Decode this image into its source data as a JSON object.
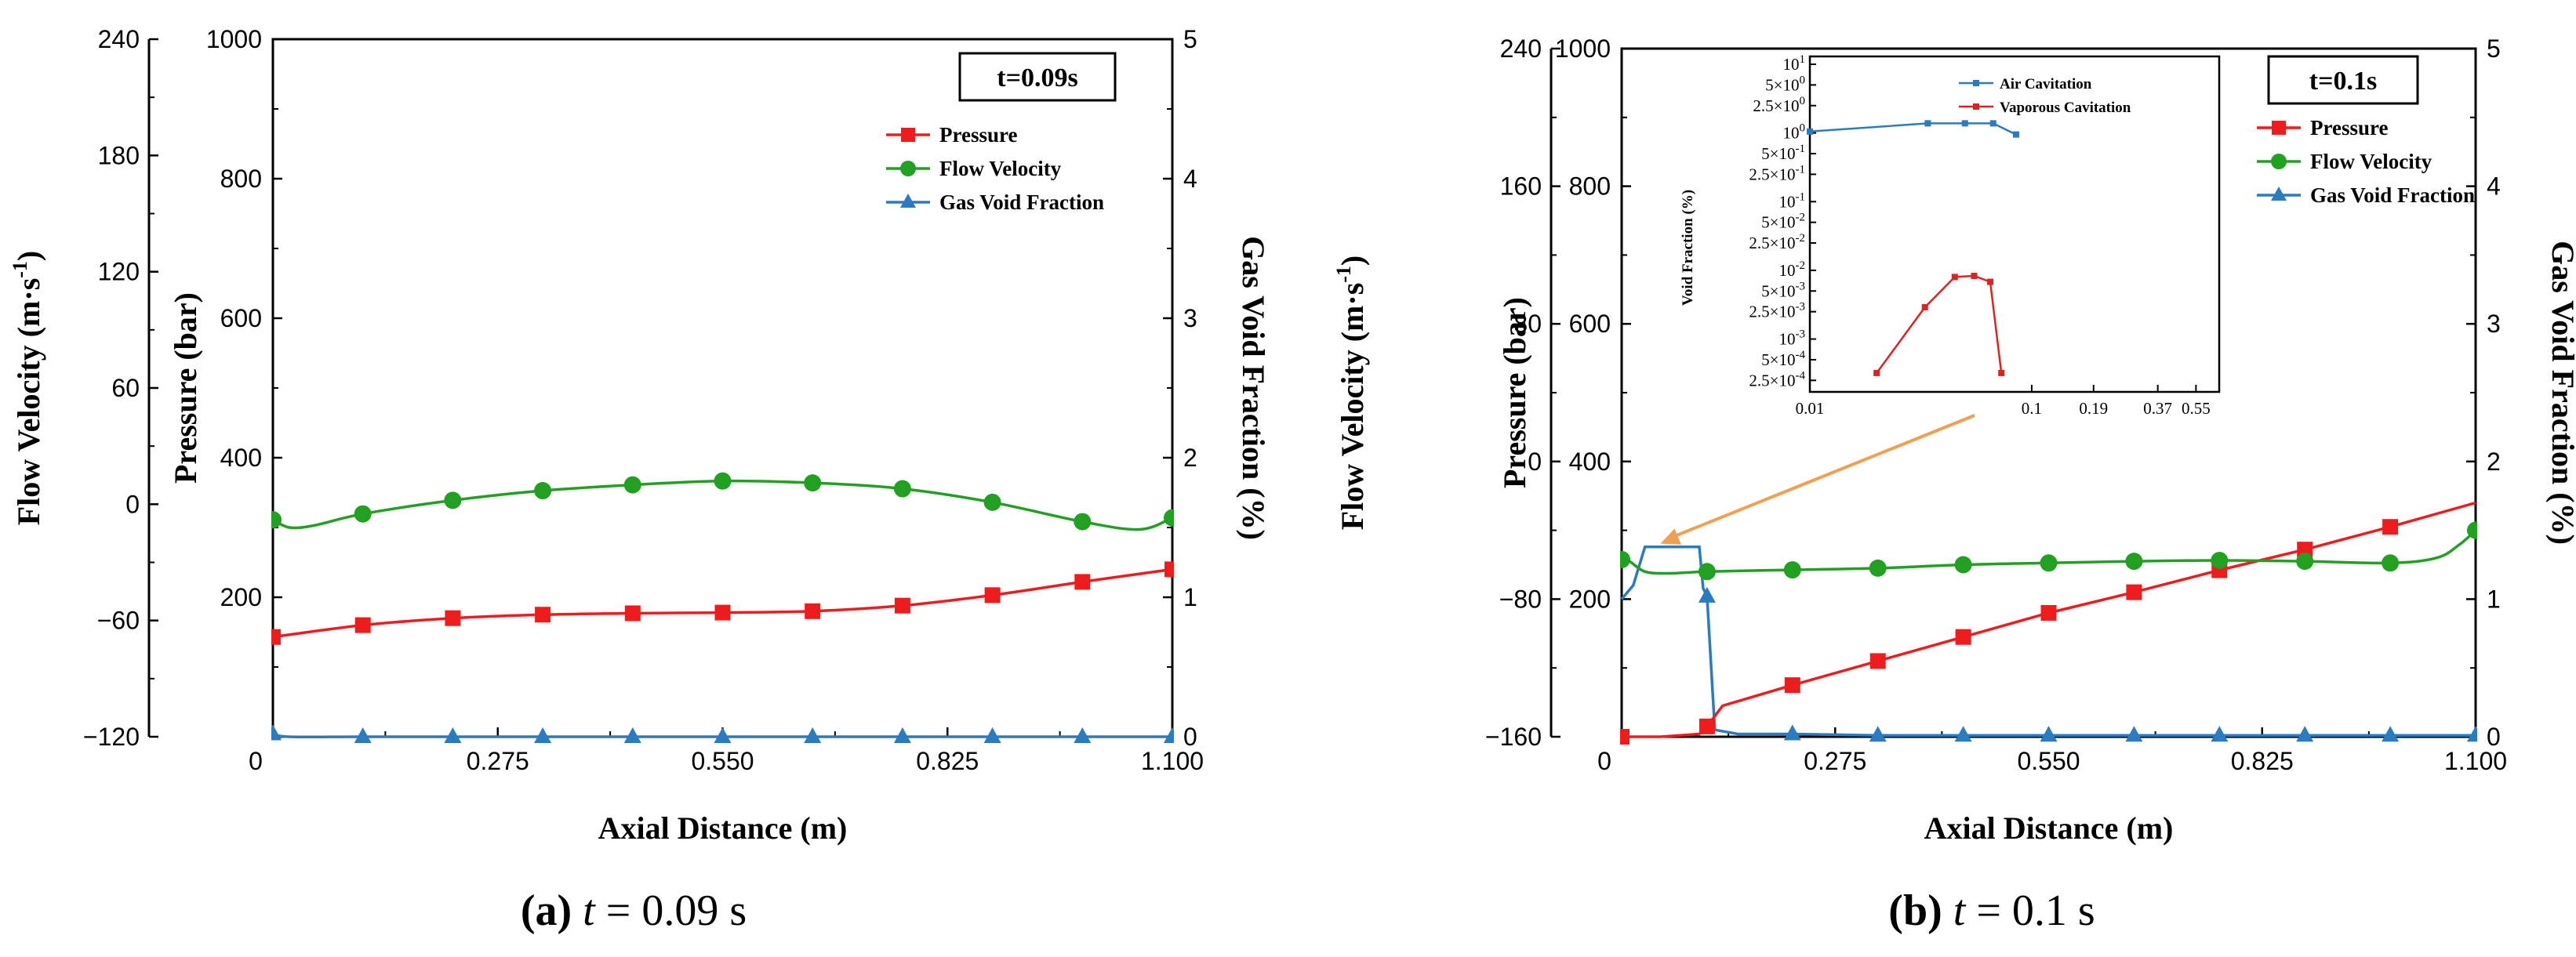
{
  "colors": {
    "pressure": "#ee1c1c",
    "velocity": "#22a022",
    "gvf": "#2a7bbf",
    "arrow": "#f0a050",
    "vaporous": "#dd2222"
  },
  "chart_data": [
    {
      "id": "a",
      "type": "line",
      "caption_label": "(a)",
      "caption_t": "t",
      "caption_value": "= 0.09 s",
      "time_label": "t=0.09s",
      "xlabel": "Axial Distance (m)",
      "ylabel_pressure": "Pressure (bar)",
      "ylabel_velocity": "Flow Velocity (m·s",
      "ylabel_velocity_sup": "-1",
      "ylabel_velocity_end": ")",
      "ylabel_gvf": "Gas Void Fraction (%)",
      "xlim": [
        0,
        1.1
      ],
      "xticks": [
        "0",
        "0.275",
        "0.550",
        "0.825",
        "1.100"
      ],
      "xtick_values": [
        0,
        0.275,
        0.55,
        0.825,
        1.1
      ],
      "pressure_axis": {
        "lim": [
          0,
          1000
        ],
        "ticks": [
          "200",
          "400",
          "600",
          "800",
          "1000"
        ],
        "tick_values": [
          200,
          400,
          600,
          800,
          1000
        ]
      },
      "velocity_axis": {
        "lim": [
          -120,
          240
        ],
        "ticks": [
          "−120",
          "−60",
          "0",
          "60",
          "120",
          "180",
          "240"
        ],
        "tick_values": [
          -120,
          -60,
          0,
          60,
          120,
          180,
          240
        ]
      },
      "gvf_axis": {
        "lim": [
          0,
          5
        ],
        "ticks": [
          "0",
          "1",
          "2",
          "3",
          "4",
          "5"
        ],
        "tick_values": [
          0,
          1,
          2,
          3,
          4,
          5
        ]
      },
      "legend": [
        "Pressure",
        "Flow Velocity",
        "Gas Void Fraction"
      ],
      "series": {
        "pressure": {
          "name": "Pressure",
          "x": [
            0,
            0.11,
            0.22,
            0.33,
            0.44,
            0.55,
            0.66,
            0.77,
            0.88,
            0.99,
            1.1
          ],
          "y": [
            143,
            160,
            170,
            175,
            177,
            178,
            180,
            188,
            203,
            222,
            240
          ],
          "markers": [
            0,
            0.11,
            0.22,
            0.33,
            0.44,
            0.55,
            0.66,
            0.77,
            0.88,
            0.99,
            1.1
          ]
        },
        "velocity": {
          "name": "Flow Velocity",
          "x": [
            0,
            0.02,
            0.05,
            0.11,
            0.22,
            0.33,
            0.44,
            0.55,
            0.66,
            0.77,
            0.88,
            0.99,
            1.06,
            1.1
          ],
          "y": [
            -8,
            -12,
            -11,
            -5,
            2,
            7,
            10,
            12,
            11,
            8,
            1,
            -9,
            -13,
            -7
          ],
          "markers": [
            0,
            0.11,
            0.22,
            0.33,
            0.44,
            0.55,
            0.66,
            0.77,
            0.88,
            0.99,
            1.1
          ]
        },
        "gvf": {
          "name": "Gas Void Fraction",
          "x": [
            0,
            0.02,
            0.11,
            0.22,
            0.33,
            0.44,
            0.55,
            0.66,
            0.77,
            0.88,
            0.99,
            1.1
          ],
          "y": [
            0.02,
            0,
            0,
            0,
            0,
            0,
            0,
            0,
            0,
            0,
            0,
            0
          ],
          "markers": [
            0,
            0.11,
            0.22,
            0.33,
            0.44,
            0.55,
            0.66,
            0.77,
            0.88,
            0.99,
            1.1
          ]
        }
      }
    },
    {
      "id": "b",
      "type": "line",
      "caption_label": "(b)",
      "caption_t": "t",
      "caption_value": "= 0.1 s",
      "time_label": "t=0.1s",
      "xlabel": "Axial Distance (m)",
      "ylabel_pressure": "Pressure (bar)",
      "ylabel_velocity": "Flow Velocity (m·s",
      "ylabel_velocity_sup": "-1",
      "ylabel_velocity_end": ")",
      "ylabel_gvf": "Gas Void Fraction (%)",
      "xlim": [
        0,
        1.1
      ],
      "xticks": [
        "0",
        "0.275",
        "0.550",
        "0.825",
        "1.100"
      ],
      "xtick_values": [
        0,
        0.275,
        0.55,
        0.825,
        1.1
      ],
      "pressure_axis": {
        "lim": [
          0,
          1000
        ],
        "ticks": [
          "200",
          "400",
          "600",
          "800",
          "1000"
        ],
        "tick_values": [
          200,
          400,
          600,
          800,
          1000
        ]
      },
      "velocity_axis": {
        "lim": [
          -160,
          240
        ],
        "ticks": [
          "−160",
          "−80",
          "0",
          "80",
          "160",
          "240"
        ],
        "tick_values": [
          -160,
          -80,
          0,
          80,
          160,
          240
        ]
      },
      "gvf_axis": {
        "lim": [
          0,
          5
        ],
        "ticks": [
          "0",
          "1",
          "2",
          "3",
          "4",
          "5"
        ],
        "tick_values": [
          0,
          1,
          2,
          3,
          4,
          5
        ]
      },
      "legend": [
        "Pressure",
        "Flow Velocity",
        "Gas Void Fraction"
      ],
      "series": {
        "pressure": {
          "name": "Pressure",
          "x": [
            0,
            0.05,
            0.1,
            0.11,
            0.13,
            0.22,
            0.33,
            0.44,
            0.55,
            0.66,
            0.77,
            0.88,
            0.99,
            1.1
          ],
          "y": [
            0,
            0,
            4,
            15,
            45,
            75,
            110,
            145,
            180,
            210,
            242,
            272,
            305,
            340
          ],
          "markers": [
            0,
            0.11,
            0.22,
            0.33,
            0.44,
            0.55,
            0.66,
            0.77,
            0.88,
            0.99
          ]
        },
        "velocity": {
          "name": "Flow Velocity",
          "x": [
            0,
            0.01,
            0.03,
            0.06,
            0.11,
            0.22,
            0.33,
            0.44,
            0.55,
            0.66,
            0.77,
            0.88,
            0.99,
            1.05,
            1.08,
            1.1
          ],
          "y": [
            -57,
            -58,
            -64,
            -65,
            -64,
            -63,
            -62,
            -60,
            -59,
            -58,
            -57.5,
            -58,
            -59,
            -56,
            -48,
            -40
          ],
          "markers": [
            0,
            0.11,
            0.22,
            0.33,
            0.44,
            0.55,
            0.66,
            0.77,
            0.88,
            0.99,
            1.1
          ]
        },
        "gvf": {
          "name": "Gas Void Fraction",
          "x": [
            0,
            0.015,
            0.03,
            0.05,
            0.08,
            0.1,
            0.105,
            0.11,
            0.12,
            0.15,
            0.22,
            0.33,
            0.44,
            0.55,
            0.66,
            0.77,
            0.88,
            0.99,
            1.1
          ],
          "y": [
            1.0,
            1.1,
            1.38,
            1.38,
            1.38,
            1.38,
            1.08,
            1.02,
            0.05,
            0.02,
            0.02,
            0.01,
            0.01,
            0.01,
            0.01,
            0.01,
            0.01,
            0.01,
            0.01
          ],
          "markers": [
            0.11,
            0.22,
            0.33,
            0.44,
            0.55,
            0.66,
            0.77,
            0.88,
            0.99,
            1.1
          ]
        }
      },
      "inset": {
        "type": "line",
        "yscale": "log",
        "xscale": "log",
        "ylabel": "Void Fraction (%)",
        "xticks": [
          "0.01",
          "0.1",
          "0.19",
          "0.37",
          "0.55"
        ],
        "xtick_values": [
          0.01,
          0.1,
          0.19,
          0.37,
          0.55
        ],
        "yticks": [
          {
            "m": "",
            "e": "1",
            "v": 10
          },
          {
            "m": "5×10",
            "e": "0",
            "v": 5
          },
          {
            "m": "2.5×10",
            "e": "0",
            "v": 2.5
          },
          {
            "m": "",
            "e": "0",
            "v": 1
          },
          {
            "m": "5×10",
            "e": "-1",
            "v": 0.5
          },
          {
            "m": "2.5×10",
            "e": "-1",
            "v": 0.25
          },
          {
            "m": "",
            "e": "-1",
            "v": 0.1
          },
          {
            "m": "5×10",
            "e": "-2",
            "v": 0.05
          },
          {
            "m": "2.5×10",
            "e": "-2",
            "v": 0.025
          },
          {
            "m": "",
            "e": "-2",
            "v": 0.01
          },
          {
            "m": "5×10",
            "e": "-3",
            "v": 0.005
          },
          {
            "m": "2.5×10",
            "e": "-3",
            "v": 0.0025
          },
          {
            "m": "",
            "e": "-3",
            "v": 0.001
          },
          {
            "m": "5×10",
            "e": "-4",
            "v": 0.0005
          },
          {
            "m": "2.5×10",
            "e": "-4",
            "v": 0.00025
          }
        ],
        "legend": [
          "Air Cavitation",
          "Vaporous Cavitation"
        ],
        "series": [
          {
            "name": "Air Cavitation",
            "x": [
              0.01,
              0.034,
              0.05,
              0.067,
              0.085
            ],
            "y": [
              1.05,
              1.38,
              1.38,
              1.38,
              0.95
            ]
          },
          {
            "name": "Vaporous Cavitation",
            "x": [
              0.02,
              0.033,
              0.045,
              0.055,
              0.065,
              0.073
            ],
            "y": [
              0.00032,
              0.0029,
              0.008,
              0.0083,
              0.0068,
              0.00032
            ]
          }
        ]
      }
    }
  ]
}
